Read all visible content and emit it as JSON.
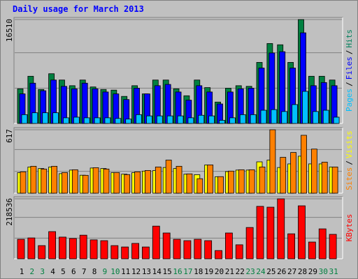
{
  "title": "Daily usage for March 2013",
  "separator": "/",
  "chart_data": [
    {
      "type": "bar",
      "ylim": [
        0,
        16510
      ],
      "yticks": [
        16510
      ],
      "series": [
        {
          "name": "Hits",
          "color": "#008040",
          "label_color": "#00805c",
          "values": [
            5500,
            7500,
            5400,
            7900,
            6900,
            6000,
            6900,
            5800,
            5400,
            5300,
            4300,
            6000,
            4700,
            6900,
            6900,
            5500,
            4400,
            6900,
            5700,
            3400,
            5600,
            6000,
            5900,
            9700,
            12700,
            12500,
            9700,
            16510,
            7500,
            7500,
            6900
          ]
        },
        {
          "name": "Files",
          "color": "#0000ff",
          "label_color": "#0000ff",
          "values": [
            4700,
            6400,
            5200,
            6900,
            5900,
            5500,
            6400,
            5500,
            5000,
            4700,
            3800,
            5600,
            4700,
            6000,
            6200,
            5000,
            3700,
            6000,
            5000,
            3100,
            5000,
            5500,
            5600,
            8800,
            11200,
            11400,
            8800,
            14400,
            6000,
            6500,
            6000
          ]
        },
        {
          "name": "Pages",
          "color": "#00c0ff",
          "label_color": "#00c0ff",
          "values": [
            1400,
            1700,
            1700,
            1700,
            900,
            1000,
            900,
            900,
            900,
            800,
            700,
            1400,
            1200,
            1200,
            1200,
            1200,
            900,
            1300,
            1200,
            500,
            900,
            1400,
            1400,
            2100,
            2200,
            1900,
            3000,
            5100,
            1900,
            2100,
            1000
          ]
        }
      ]
    },
    {
      "type": "bar",
      "ylim": [
        0,
        617
      ],
      "yticks": [
        617
      ],
      "series": [
        {
          "name": "Visits",
          "color": "#ffff00",
          "label_color": "#ffff00",
          "values": [
            200,
            255,
            240,
            255,
            190,
            225,
            175,
            245,
            240,
            200,
            185,
            200,
            215,
            220,
            250,
            240,
            185,
            180,
            275,
            160,
            210,
            225,
            225,
            305,
            322,
            250,
            285,
            360,
            285,
            285,
            255
          ]
        },
        {
          "name": "Sites",
          "color": "#ff8000",
          "label_color": "#ff8000",
          "values": [
            208,
            262,
            235,
            262,
            201,
            228,
            174,
            248,
            235,
            201,
            181,
            208,
            221,
            255,
            322,
            262,
            188,
            141,
            275,
            161,
            215,
            228,
            228,
            255,
            617,
            349,
            396,
            563,
            429,
            302,
            255
          ]
        }
      ]
    },
    {
      "type": "bar",
      "ylim": [
        0,
        218536
      ],
      "yticks": [
        218536
      ],
      "categories": [
        "1",
        "2",
        "3",
        "4",
        "5",
        "6",
        "7",
        "8",
        "9",
        "10",
        "11",
        "12",
        "13",
        "14",
        "15",
        "16",
        "17",
        "18",
        "19",
        "20",
        "21",
        "22",
        "23",
        "24",
        "25",
        "26",
        "27",
        "28",
        "29",
        "30",
        "31"
      ],
      "category_colors": [
        "#000000",
        "#008040",
        "#008040",
        "#000000",
        "#000000",
        "#000000",
        "#000000",
        "#000000",
        "#008040",
        "#008040",
        "#000000",
        "#000000",
        "#000000",
        "#000000",
        "#000000",
        "#008040",
        "#008040",
        "#000000",
        "#000000",
        "#000000",
        "#000000",
        "#000000",
        "#008040",
        "#008040",
        "#000000",
        "#000000",
        "#000000",
        "#000000",
        "#000000",
        "#008040",
        "#008040"
      ],
      "series": [
        {
          "name": "KBytes",
          "color": "#ff0000",
          "label_color": "#ff0000",
          "values": [
            71000,
            76000,
            48000,
            99000,
            79000,
            74000,
            86000,
            69000,
            66000,
            48000,
            43000,
            56000,
            43000,
            119000,
            94000,
            71000,
            66000,
            71000,
            66000,
            30000,
            94000,
            51000,
            114000,
            191000,
            188000,
            218536,
            91000,
            193000,
            61000,
            109000,
            89000
          ]
        }
      ]
    }
  ]
}
